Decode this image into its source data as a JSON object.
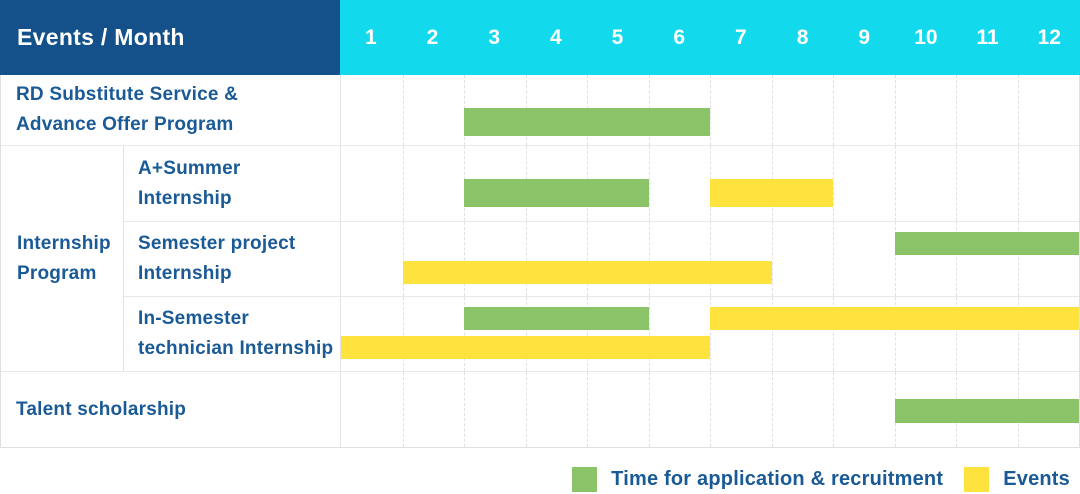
{
  "header": {
    "title": "Events / Month"
  },
  "colors": {
    "header_bg": "#14518A",
    "months_bg": "#12D9EC",
    "label_text": "#1A5A96",
    "green": "#8BC369",
    "yellow": "#FEE23E",
    "grid_dashed": "#E0E0E0"
  },
  "chart_data": {
    "type": "bar",
    "variant": "gantt-schedule",
    "title": "Events / Month",
    "x_ticks": [
      "1",
      "2",
      "3",
      "4",
      "5",
      "6",
      "7",
      "8",
      "9",
      "10",
      "11",
      "12"
    ],
    "x_range": [
      1,
      13
    ],
    "grid": true,
    "legend_position": "bottom-right",
    "series_legend": [
      {
        "name": "Time for application & recruitment",
        "color": "#8BC369"
      },
      {
        "name": "Events",
        "color": "#FEE23E"
      }
    ],
    "rows": [
      {
        "group": "",
        "label": "RD Substitute Service & Advance Offer Program",
        "label_lines": [
          "RD Substitute Service &",
          "Advance Offer Program"
        ],
        "bars": [
          {
            "series": "Time for application & recruitment",
            "start_month": 3,
            "end_month": 7,
            "line": 0
          }
        ]
      },
      {
        "group": "Internship Program",
        "group_label_lines": [
          "Internship",
          "Program"
        ],
        "label": "A+Summer Internship",
        "label_lines": [
          "A+Summer",
          "Internship"
        ],
        "bars": [
          {
            "series": "Time for application & recruitment",
            "start_month": 3,
            "end_month": 6,
            "line": 0
          },
          {
            "series": "Events",
            "start_month": 7,
            "end_month": 9,
            "line": 0
          }
        ]
      },
      {
        "group": "Internship Program",
        "label": "Semester project Internship",
        "label_lines": [
          "Semester project",
          "Internship"
        ],
        "bars": [
          {
            "series": "Time for application & recruitment",
            "start_month": 10,
            "end_month": 13,
            "line": 0
          },
          {
            "series": "Events",
            "start_month": 2,
            "end_month": 8,
            "line": 1
          }
        ]
      },
      {
        "group": "Internship Program",
        "label": "In-Semester technician Internship",
        "label_lines": [
          "In-Semester",
          "technician Internship"
        ],
        "bars": [
          {
            "series": "Time for application & recruitment",
            "start_month": 3,
            "end_month": 6,
            "line": 0
          },
          {
            "series": "Events",
            "start_month": 7,
            "end_month": 13,
            "line": 0
          },
          {
            "series": "Events",
            "start_month": 1,
            "end_month": 7,
            "line": 1
          }
        ]
      },
      {
        "group": "",
        "label": "Talent scholarship",
        "label_lines": [
          "Talent scholarship"
        ],
        "bars": [
          {
            "series": "Time for application & recruitment",
            "start_month": 10,
            "end_month": 13,
            "line": 0
          }
        ]
      }
    ]
  },
  "legend": {
    "items": [
      {
        "label": "Time for application & recruitment",
        "color_key": "green"
      },
      {
        "label": "Events",
        "color_key": "yellow"
      }
    ]
  }
}
